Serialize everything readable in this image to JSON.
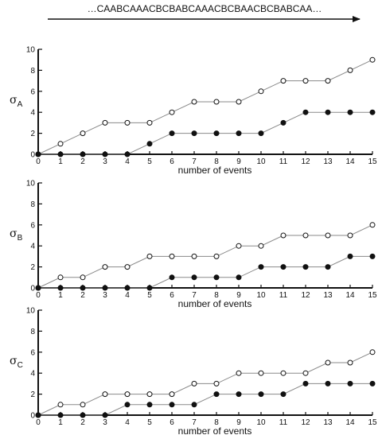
{
  "sequence": {
    "text": "…CAABCAAACBCBABCAAACBCBAACBCBABCAA…"
  },
  "chart_data": [
    {
      "type": "line",
      "ylabel_symbol": "σ",
      "ylabel_subscript": "A",
      "xlabel": "number of events",
      "x": [
        0,
        1,
        2,
        3,
        4,
        5,
        6,
        7,
        8,
        9,
        10,
        11,
        12,
        13,
        14,
        15
      ],
      "xlim": [
        0,
        15
      ],
      "ylim": [
        0,
        10
      ],
      "yticks": [
        0,
        2,
        4,
        6,
        8,
        10
      ],
      "series": [
        {
          "marker": "open",
          "values": [
            0,
            1,
            2,
            3,
            3,
            3,
            4,
            5,
            5,
            5,
            6,
            7,
            7,
            7,
            8,
            9
          ]
        },
        {
          "marker": "filled",
          "values": [
            0,
            0,
            0,
            0,
            0,
            1,
            2,
            2,
            2,
            2,
            2,
            3,
            4,
            4,
            4,
            4
          ]
        }
      ]
    },
    {
      "type": "line",
      "ylabel_symbol": "σ",
      "ylabel_subscript": "B",
      "xlabel": "number of events",
      "x": [
        0,
        1,
        2,
        3,
        4,
        5,
        6,
        7,
        8,
        9,
        10,
        11,
        12,
        13,
        14,
        15
      ],
      "xlim": [
        0,
        15
      ],
      "ylim": [
        0,
        10
      ],
      "yticks": [
        0,
        2,
        4,
        6,
        8,
        10
      ],
      "series": [
        {
          "marker": "open",
          "values": [
            0,
            1,
            1,
            2,
            2,
            3,
            3,
            3,
            3,
            4,
            4,
            5,
            5,
            5,
            5,
            6
          ]
        },
        {
          "marker": "filled",
          "values": [
            0,
            0,
            0,
            0,
            0,
            0,
            1,
            1,
            1,
            1,
            2,
            2,
            2,
            2,
            3,
            3
          ]
        }
      ]
    },
    {
      "type": "line",
      "ylabel_symbol": "σ",
      "ylabel_subscript": "C",
      "xlabel": "number of events",
      "x": [
        0,
        1,
        2,
        3,
        4,
        5,
        6,
        7,
        8,
        9,
        10,
        11,
        12,
        13,
        14,
        15
      ],
      "xlim": [
        0,
        15
      ],
      "ylim": [
        0,
        10
      ],
      "yticks": [
        0,
        2,
        4,
        6,
        8,
        10
      ],
      "series": [
        {
          "marker": "open",
          "values": [
            0,
            1,
            1,
            2,
            2,
            2,
            2,
            3,
            3,
            4,
            4,
            4,
            4,
            5,
            5,
            6
          ]
        },
        {
          "marker": "filled",
          "values": [
            0,
            0,
            0,
            0,
            1,
            1,
            1,
            1,
            2,
            2,
            2,
            2,
            3,
            3,
            3,
            3
          ]
        }
      ]
    }
  ]
}
